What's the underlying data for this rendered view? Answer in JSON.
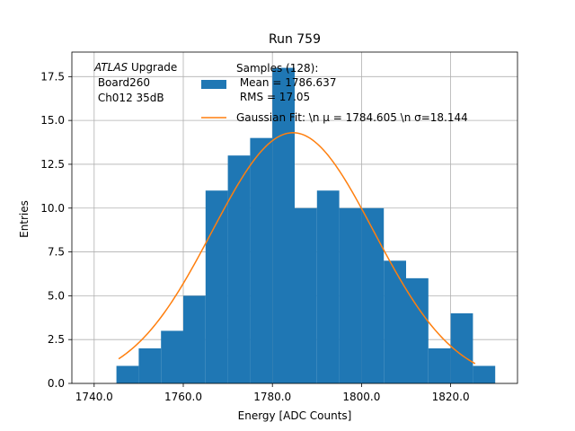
{
  "chart_data": {
    "type": "bar",
    "title": "Run 759",
    "xlabel": "Energy [ADC Counts]",
    "ylabel": "Entries",
    "xlim": [
      1735,
      1835
    ],
    "ylim": [
      0,
      18.9
    ],
    "grid": true,
    "x_ticks": [
      1740,
      1760,
      1780,
      1800,
      1820
    ],
    "x_tick_labels": [
      "1740.0",
      "1760.0",
      "1780.0",
      "1800.0",
      "1820.0"
    ],
    "y_ticks": [
      0,
      2.5,
      5,
      7.5,
      10,
      12.5,
      15,
      17.5
    ],
    "y_tick_labels": [
      "0.0",
      "2.5",
      "5.0",
      "7.5",
      "10.0",
      "12.5",
      "15.0",
      "17.5"
    ],
    "histogram": {
      "name": "Samples (128):",
      "bin_edges": [
        1745,
        1750,
        1755,
        1760,
        1765,
        1770,
        1775,
        1780,
        1785,
        1790,
        1795,
        1800,
        1805,
        1810,
        1815,
        1820,
        1825,
        1830
      ],
      "counts": [
        1,
        2,
        3,
        5,
        11,
        13,
        14,
        18,
        10,
        11,
        10,
        10,
        7,
        6,
        2,
        4,
        1
      ]
    },
    "fit": {
      "name": "Gaussian Fit",
      "mu": 1784.605,
      "sigma": 18.144,
      "amplitude": 14.3,
      "x_range": [
        1745.5,
        1825.5
      ]
    },
    "colors": {
      "bars": "#1f77b4",
      "fit": "#ff7f0e",
      "grid": "#b0b0b0"
    },
    "legend": {
      "location": "top-right",
      "hist_label_lines": [
        "Samples (128):",
        " Mean = 1786.637",
        " RMS = 17.05"
      ],
      "fit_label": "Gaussian Fit: \\n μ = 1784.605 \\n σ=18.144"
    },
    "annotation": {
      "location": "top-left",
      "italic": "ATLAS",
      "line1_rest": " Upgrade",
      "line2": " Board260",
      "line3": " Ch012 35dB"
    }
  }
}
